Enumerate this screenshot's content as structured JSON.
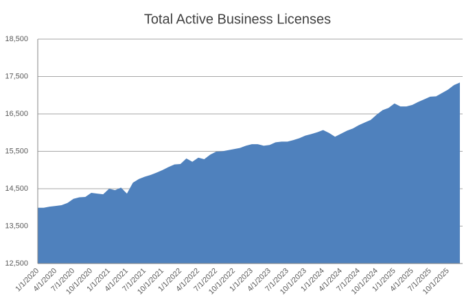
{
  "chart_data": {
    "type": "area",
    "title": "Total Active Business Licenses",
    "categories": [
      "1/1/2020",
      null,
      null,
      "4/1/2020",
      null,
      null,
      "7/1/2020",
      null,
      null,
      "10/1/2020",
      null,
      null,
      "1/1/2021",
      null,
      null,
      "4/1/2021",
      null,
      null,
      "7/1/2021",
      null,
      null,
      "10/1/2021",
      null,
      null,
      "1/1/2022",
      null,
      null,
      "4/1/2022",
      null,
      null,
      "7/1/2022",
      null,
      null,
      "10/1/2022",
      null,
      null,
      "1/1/2023",
      null,
      null,
      "4/1/2023",
      null,
      null,
      "7/1/2023",
      null,
      null,
      "10/1/2023",
      null,
      null,
      "1/1/2024",
      null,
      null,
      "4/1/2024",
      null,
      null,
      "7/1/2024",
      null,
      null,
      "10/1/2024",
      null,
      null,
      "1/1/2025",
      null,
      null,
      "4/1/2025",
      null,
      null,
      "7/1/2025",
      null,
      null,
      "10/1/2025",
      null,
      null
    ],
    "values": [
      13990,
      13990,
      14020,
      14040,
      14060,
      14120,
      14230,
      14270,
      14280,
      14390,
      14370,
      14350,
      14500,
      14460,
      14530,
      14370,
      14660,
      14760,
      14820,
      14870,
      14930,
      15000,
      15080,
      15150,
      15160,
      15310,
      15220,
      15330,
      15290,
      15410,
      15490,
      15500,
      15530,
      15560,
      15590,
      15650,
      15690,
      15690,
      15650,
      15670,
      15740,
      15760,
      15760,
      15800,
      15850,
      15920,
      15960,
      16010,
      16070,
      15990,
      15890,
      15970,
      16050,
      16110,
      16200,
      16270,
      16340,
      16480,
      16600,
      16660,
      16780,
      16700,
      16700,
      16740,
      16820,
      16890,
      16960,
      16970,
      17060,
      17150,
      17270,
      17340
    ],
    "color": "#4f81bd",
    "ylim": [
      12500,
      18500
    ],
    "yticks": [
      {
        "value": 12500,
        "label": "12,500"
      },
      {
        "value": 13500,
        "label": "13,500"
      },
      {
        "value": 14500,
        "label": "14,500"
      },
      {
        "value": 15500,
        "label": "15,500"
      },
      {
        "value": 16500,
        "label": "16,500"
      },
      {
        "value": 17500,
        "label": "17,500"
      },
      {
        "value": 18500,
        "label": "18,500"
      }
    ],
    "grid": true
  }
}
